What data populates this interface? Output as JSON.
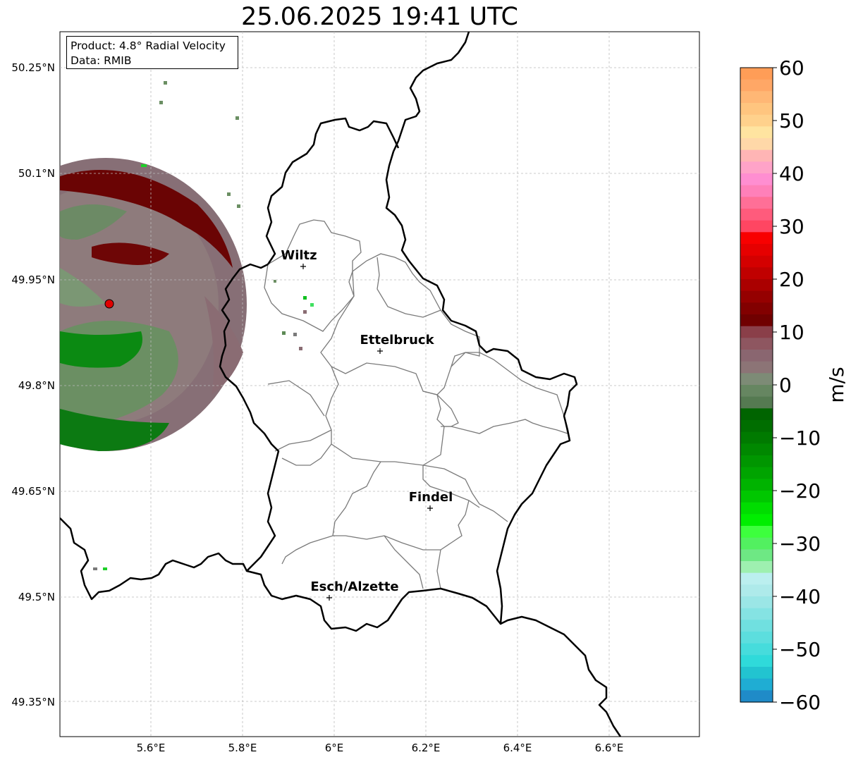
{
  "title": "25.06.2025 19:41 UTC",
  "info_box": {
    "product": "Product: 4.8° Radial Velocity",
    "data": "Data: RMIB"
  },
  "map": {
    "lat_labels": [
      "50.25°N",
      "50.1°N",
      "49.95°N",
      "49.8°N",
      "49.65°N",
      "49.5°N",
      "49.35°N"
    ],
    "lon_labels": [
      "5.6°E",
      "5.8°E",
      "6°E",
      "6.2°E",
      "6.4°E",
      "6.6°E"
    ],
    "gridlines": "dashed",
    "cities": [
      {
        "name": "Wiltz",
        "lon": 5.93,
        "lat": 49.97
      },
      {
        "name": "Ettelbruck",
        "lon": 6.1,
        "lat": 49.85
      },
      {
        "name": "Findel",
        "lon": 6.21,
        "lat": 49.63
      },
      {
        "name": "Esch/Alzette",
        "lon": 5.99,
        "lat": 49.5
      }
    ],
    "radar_site_color": "#ff0000"
  },
  "colorbar": {
    "unit": "m/s",
    "ticks": [
      "60",
      "50",
      "40",
      "30",
      "20",
      "10",
      "0",
      "−10",
      "−20",
      "−30",
      "−40",
      "−50",
      "−60"
    ],
    "range": [
      -60,
      60
    ]
  },
  "chart_data": {
    "type": "heatmap",
    "title": "25.06.2025 19:41 UTC",
    "xlabel": "",
    "ylabel": "",
    "xlim": [
      5.4,
      6.8
    ],
    "ylim": [
      49.3,
      50.3
    ],
    "colorbar_label": "m/s",
    "colorbar_range": [
      -60,
      60
    ],
    "grid": true
  }
}
